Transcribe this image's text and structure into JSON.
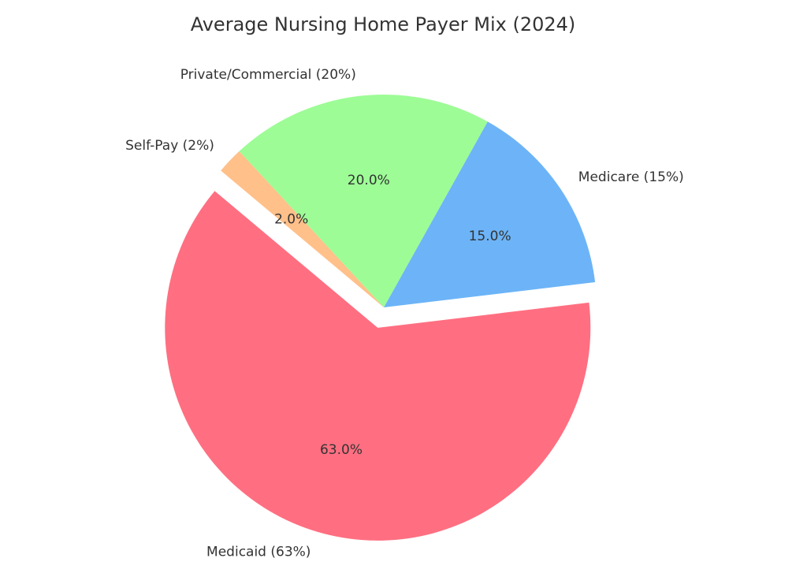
{
  "chart_data": {
    "type": "pie",
    "title": "Average Nursing Home Payer Mix (2024)",
    "categories": [
      "Medicaid (63%)",
      "Medicare (15%)",
      "Private/Commercial (20%)",
      "Self-Pay (2%)"
    ],
    "values": [
      63,
      15,
      20,
      2
    ],
    "value_labels": [
      "63.0%",
      "15.0%",
      "20.0%",
      "2.0%"
    ],
    "colors": [
      "#ff6f81",
      "#6cb4f7",
      "#9dfc96",
      "#ffc08a"
    ]
  }
}
